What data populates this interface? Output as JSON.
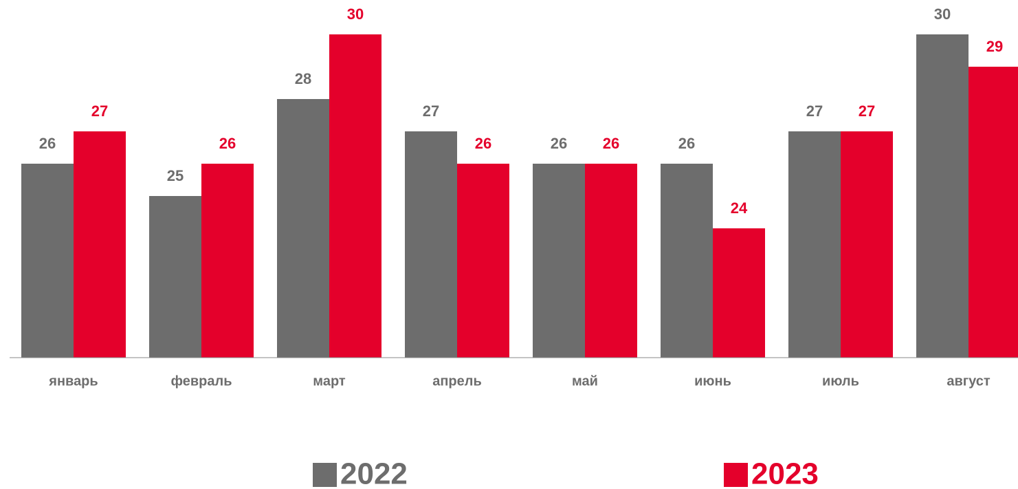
{
  "chart_data": {
    "type": "bar",
    "categories": [
      "январь",
      "февраль",
      "март",
      "апрель",
      "май",
      "июнь",
      "июль",
      "август"
    ],
    "series": [
      {
        "name": "2022",
        "color": "#6d6d6d",
        "values": [
          26,
          25,
          28,
          27,
          26,
          26,
          27,
          30
        ]
      },
      {
        "name": "2023",
        "color": "#e4002b",
        "values": [
          27,
          26,
          30,
          26,
          26,
          24,
          27,
          29
        ]
      }
    ],
    "ylim": [
      20,
      31
    ]
  }
}
